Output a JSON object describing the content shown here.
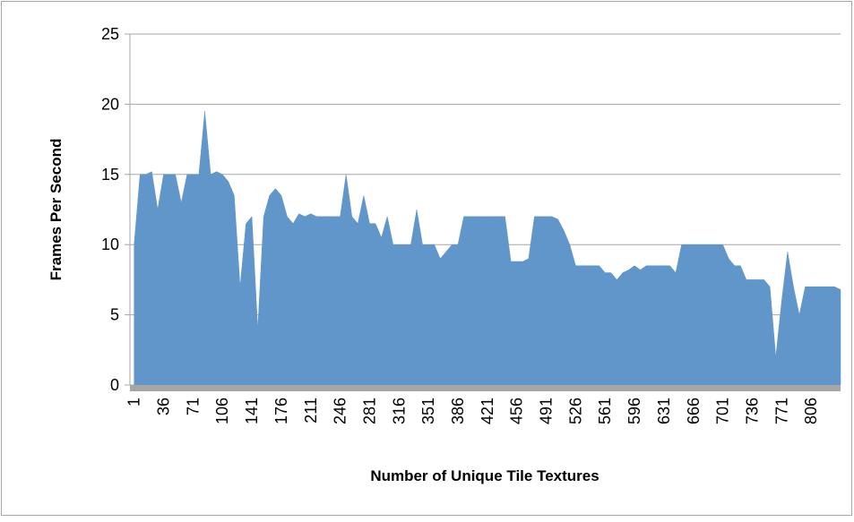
{
  "chart_data": {
    "type": "area",
    "x_label": "Number of Unique Tile Textures",
    "y_label": "Frames Per Second",
    "x": [
      1,
      8,
      15,
      22,
      29,
      36,
      43,
      50,
      57,
      64,
      71,
      78,
      85,
      92,
      99,
      106,
      113,
      120,
      127,
      134,
      141,
      148,
      155,
      162,
      169,
      176,
      183,
      190,
      197,
      204,
      211,
      218,
      225,
      232,
      239,
      246,
      253,
      260,
      267,
      274,
      281,
      288,
      295,
      302,
      309,
      316,
      323,
      330,
      337,
      344,
      351,
      358,
      365,
      372,
      379,
      386,
      393,
      400,
      407,
      414,
      421,
      428,
      435,
      442,
      449,
      456,
      463,
      470,
      477,
      484,
      491,
      498,
      505,
      512,
      519,
      526,
      533,
      540,
      547,
      554,
      561,
      568,
      575,
      582,
      589,
      596,
      603,
      610,
      617,
      624,
      631,
      638,
      645,
      652,
      659,
      666,
      673,
      680,
      687,
      694,
      701,
      708,
      715,
      722,
      729,
      736,
      743,
      750,
      757,
      764,
      771,
      778,
      785,
      792,
      799,
      806,
      813,
      820,
      827,
      834,
      841
    ],
    "series": [
      {
        "name": "Frames Per Second",
        "color": "#6096c9",
        "values": [
          10,
          15,
          15,
          15.2,
          12.5,
          15,
          15,
          15,
          13,
          15,
          15,
          15,
          19.5,
          15,
          15.2,
          15,
          14.5,
          13.5,
          7,
          11.5,
          12,
          4,
          12,
          13.5,
          14,
          13.5,
          12,
          11.5,
          12.2,
          12,
          12.2,
          12,
          12,
          12,
          12,
          12,
          15,
          12,
          11.5,
          13.5,
          11.5,
          11.5,
          10.5,
          12,
          10,
          10,
          10,
          10,
          12.5,
          10,
          10,
          10,
          9,
          9.5,
          10,
          10,
          12,
          12,
          12,
          12,
          12,
          12,
          12,
          12,
          8.8,
          8.8,
          8.8,
          9,
          12,
          12,
          12,
          12,
          11.8,
          11,
          10,
          8.5,
          8.5,
          8.5,
          8.5,
          8.5,
          8,
          8,
          7.5,
          8,
          8.2,
          8.5,
          8.2,
          8.5,
          8.5,
          8.5,
          8.5,
          8.5,
          8,
          10,
          10,
          10,
          10,
          10,
          10,
          10,
          10,
          9,
          8.5,
          8.5,
          7.5,
          7.5,
          7.5,
          7.5,
          7,
          2,
          6,
          9.5,
          7,
          5,
          7,
          7,
          7,
          7,
          7,
          7,
          6.8
        ]
      }
    ],
    "xlim": [
      -4,
      841
    ],
    "xticks": [
      1,
      36,
      71,
      106,
      141,
      176,
      211,
      246,
      281,
      316,
      351,
      386,
      421,
      456,
      491,
      526,
      561,
      596,
      631,
      666,
      701,
      736,
      771,
      806
    ],
    "ylim": [
      0,
      25
    ],
    "yticks": [
      0,
      5,
      10,
      15,
      20,
      25
    ],
    "grid": true
  }
}
